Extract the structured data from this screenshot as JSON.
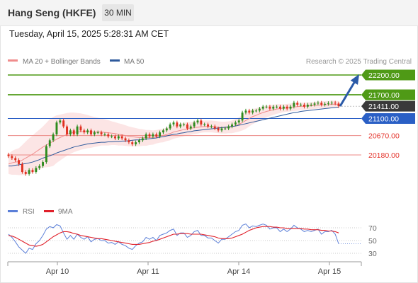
{
  "header": {
    "title": "Hang Seng (HKFE)",
    "timeframe": "30 MIN"
  },
  "timestamp": "Tuesday, April 15, 2025 5:28:31 AM CET",
  "legend": {
    "bollinger": {
      "label": "MA 20 + Bollinger Bands",
      "color": "#f08c8c"
    },
    "ma50": {
      "label": "MA 50",
      "color": "#2e5a9c"
    }
  },
  "credit": "Research © 2025 Trading Central",
  "chart_data": {
    "type": "candlestick",
    "x_tick_labels": [
      "Apr 10",
      "Apr 11",
      "Apr 14",
      "Apr 15"
    ],
    "levels": [
      {
        "value": 22200,
        "label": "22200.00",
        "kind": "target",
        "color": "#4f9a16"
      },
      {
        "value": 21700,
        "label": "21700.00",
        "kind": "target",
        "color": "#4f9a16"
      },
      {
        "value": 21411,
        "label": "21411.00",
        "kind": "last",
        "color": "#3a3a3a"
      },
      {
        "value": 21100,
        "label": "21100.00",
        "kind": "pivot",
        "color": "#2a5fc5"
      },
      {
        "value": 20670,
        "label": "20670.00",
        "kind": "support",
        "color": "#e4342c"
      },
      {
        "value": 20180,
        "label": "20180.00",
        "kind": "support",
        "color": "#e4342c"
      }
    ],
    "candle_colors": {
      "up": "#2e8b1e",
      "down": "#e03020"
    },
    "close": [
      20150,
      20100,
      20050,
      19950,
      19750,
      19700,
      19800,
      19750,
      19850,
      19900,
      20000,
      20400,
      20550,
      20700,
      21000,
      21050,
      20900,
      20700,
      20800,
      20700,
      20900,
      20800,
      20750,
      20800,
      20700,
      20750,
      20750,
      20700,
      20700,
      20650,
      20650,
      20600,
      20650,
      20600,
      20550,
      20500,
      20450,
      20500,
      20550,
      20600,
      20700,
      20650,
      20700,
      20650,
      20750,
      20800,
      20850,
      20950,
      21000,
      20900,
      20950,
      20950,
      20850,
      20900,
      21000,
      21050,
      20950,
      20950,
      20900,
      20900,
      20850,
      20800,
      20850,
      20850,
      20900,
      20950,
      21000,
      21050,
      21250,
      21300,
      21250,
      21300,
      21300,
      21350,
      21400,
      21400,
      21350,
      21400,
      21400,
      21350,
      21400,
      21350,
      21400,
      21500,
      21450,
      21450,
      21400,
      21450,
      21450,
      21480,
      21500,
      21450,
      21470,
      21490,
      21500,
      21480,
      21411
    ],
    "ma20": [
      19950,
      19980,
      20000,
      20010,
      20050,
      20100,
      20150,
      20200,
      20260,
      20320,
      20380,
      20430,
      20480,
      20520,
      20580,
      20620,
      20660,
      20700,
      20730,
      20750,
      20760,
      20770,
      20770,
      20770,
      20760,
      20760,
      20760,
      20760,
      20750,
      20740,
      20730,
      20720,
      20700,
      20690,
      20670,
      20650,
      20640,
      20630,
      20620,
      20620,
      20610,
      20620,
      20620,
      20640,
      20660,
      20670,
      20700,
      20720,
      20760,
      20780,
      20800,
      20820,
      20840,
      20850,
      20870,
      20880,
      20890,
      20900,
      20900,
      20900,
      20890,
      20880,
      20870,
      20870,
      20880,
      20890,
      20920,
      20950,
      21000,
      21050,
      21100,
      21150,
      21180,
      21220,
      21250,
      21280,
      21300,
      21320,
      21340,
      21350,
      21360,
      21370,
      21380,
      21390,
      21400,
      21410,
      21410,
      21420,
      21420,
      21430,
      21440,
      21440,
      21450,
      21450,
      21460,
      21460,
      21450
    ],
    "ma50": [
      19900,
      19900,
      19920,
      19930,
      19950,
      19960,
      19980,
      20000,
      20030,
      20060,
      20100,
      20130,
      20160,
      20190,
      20230,
      20260,
      20290,
      20320,
      20350,
      20380,
      20400,
      20420,
      20440,
      20460,
      20470,
      20480,
      20490,
      20500,
      20500,
      20510,
      20510,
      20520,
      20520,
      20530,
      20530,
      20540,
      20550,
      20560,
      20560,
      20570,
      20580,
      20590,
      20600,
      20610,
      20630,
      20640,
      20660,
      20680,
      20700,
      20710,
      20730,
      20740,
      20760,
      20770,
      20790,
      20800,
      20810,
      20820,
      20830,
      20840,
      20850,
      20860,
      20870,
      20880,
      20890,
      20900,
      20910,
      20930,
      20950,
      20970,
      20990,
      21010,
      21030,
      21050,
      21070,
      21090,
      21110,
      21130,
      21150,
      21170,
      21190,
      21210,
      21230,
      21250,
      21260,
      21280,
      21290,
      21300,
      21310,
      21320,
      21330,
      21340,
      21350,
      21360,
      21370,
      21380,
      21390
    ],
    "band_width": [
      250,
      300,
      320,
      340,
      380,
      420,
      450,
      470,
      490,
      500,
      520,
      560,
      600,
      620,
      600,
      580,
      560,
      540,
      520,
      500,
      480,
      460,
      440,
      420,
      400,
      380,
      360,
      340,
      330,
      320,
      300,
      290,
      280,
      270,
      260,
      250,
      240,
      230,
      220,
      210,
      200,
      190,
      180,
      170,
      170,
      170,
      170,
      170,
      170,
      170,
      170,
      170,
      170,
      160,
      160,
      160,
      150,
      150,
      150,
      150,
      150,
      150,
      150,
      150,
      150,
      160,
      170,
      180,
      200,
      210,
      200,
      190,
      180,
      170,
      160,
      150,
      140,
      130,
      120,
      110,
      100,
      100,
      100,
      100,
      100,
      90,
      90,
      90,
      90,
      90,
      90,
      90,
      90,
      90,
      90,
      90,
      90
    ],
    "indicator": {
      "label_rsi": "RSI",
      "label_ma": "9MA",
      "rsi_color": "#5b7fd8",
      "ma_color": "#e0202a",
      "ticks": [
        70,
        50,
        30
      ],
      "rsi": [
        60,
        55,
        48,
        40,
        35,
        30,
        38,
        36,
        45,
        50,
        58,
        68,
        72,
        70,
        75,
        73,
        62,
        52,
        58,
        52,
        60,
        55,
        52,
        56,
        48,
        52,
        53,
        50,
        50,
        46,
        47,
        44,
        48,
        44,
        42,
        38,
        36,
        42,
        46,
        48,
        55,
        52,
        55,
        50,
        58,
        60,
        62,
        66,
        68,
        58,
        62,
        62,
        55,
        58,
        64,
        66,
        58,
        58,
        54,
        54,
        50,
        46,
        52,
        52,
        56,
        60,
        64,
        66,
        74,
        76,
        70,
        73,
        72,
        74,
        76,
        74,
        68,
        70,
        70,
        64,
        68,
        64,
        68,
        74,
        70,
        68,
        64,
        66,
        64,
        66,
        68,
        60,
        64,
        64,
        66,
        60,
        45
      ],
      "ma": [
        58,
        57,
        55,
        52,
        49,
        46,
        43,
        42,
        41,
        42,
        44,
        48,
        52,
        56,
        59,
        62,
        64,
        64,
        63,
        61,
        60,
        58,
        57,
        56,
        55,
        54,
        53,
        53,
        52,
        51,
        50,
        49,
        48,
        47,
        46,
        45,
        44,
        44,
        44,
        45,
        46,
        47,
        49,
        50,
        52,
        54,
        56,
        58,
        60,
        60,
        61,
        61,
        61,
        60,
        60,
        60,
        60,
        59,
        58,
        57,
        56,
        54,
        53,
        53,
        53,
        54,
        56,
        58,
        60,
        63,
        66,
        68,
        70,
        71,
        72,
        72,
        72,
        71,
        71,
        70,
        70,
        69,
        69,
        69,
        69,
        69,
        68,
        68,
        67,
        67,
        67,
        66,
        66,
        65,
        65,
        64,
        62
      ]
    }
  }
}
